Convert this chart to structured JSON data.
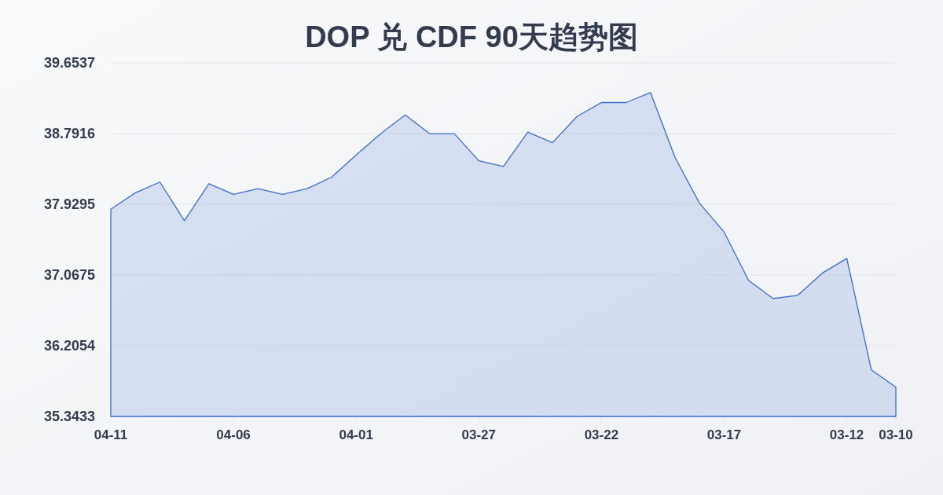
{
  "chart_data": {
    "type": "area",
    "title": "DOP 兑 CDF 90天趋势图",
    "categories": [
      "04-11",
      null,
      null,
      null,
      null,
      "04-06",
      null,
      null,
      null,
      null,
      "04-01",
      null,
      null,
      null,
      null,
      "03-27",
      null,
      null,
      null,
      null,
      "03-22",
      null,
      null,
      null,
      null,
      "03-17",
      null,
      null,
      null,
      null,
      "03-12",
      null,
      "03-10"
    ],
    "values": [
      37.87,
      38.07,
      38.2,
      37.73,
      38.18,
      38.05,
      38.12,
      38.05,
      38.12,
      38.26,
      38.53,
      38.79,
      39.02,
      38.79,
      38.79,
      38.46,
      38.39,
      38.81,
      38.68,
      39.0,
      39.17,
      39.17,
      39.29,
      38.5,
      37.94,
      37.59,
      37.0,
      36.78,
      36.82,
      37.09,
      37.27,
      35.91,
      35.7
    ],
    "color": "#3a6bd0",
    "ylim": [
      35.3433,
      39.6537
    ],
    "yticks": [
      35.3433,
      36.2054,
      37.0675,
      37.9295,
      38.7916,
      39.6537
    ],
    "grid": "y"
  }
}
